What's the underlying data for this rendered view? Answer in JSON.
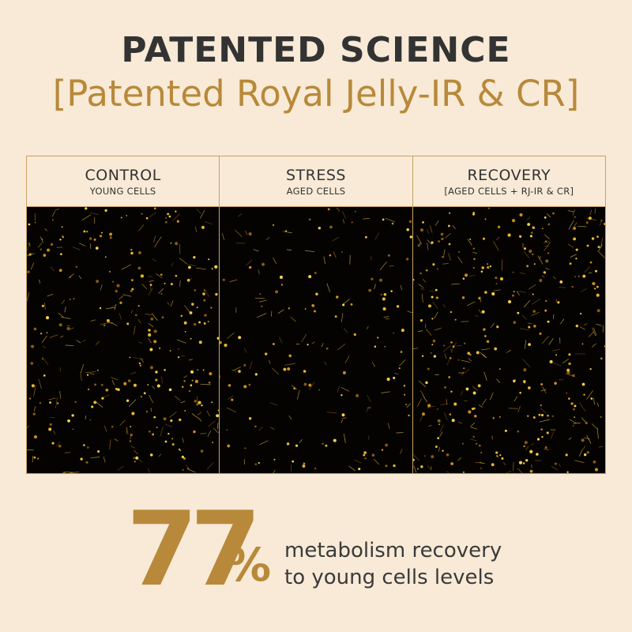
{
  "header": {
    "title": "PATENTED SCIENCE",
    "subtitle": "[Patented Royal Jelly-IR & CR]"
  },
  "panels": [
    {
      "title": "CONTROL",
      "subtitle": "YOUNG CELLS"
    },
    {
      "title": "STRESS",
      "subtitle": "AGED CELLS"
    },
    {
      "title": "RECOVERY",
      "subtitle": "[AGED CELLS + RJ-IR & CR]"
    }
  ],
  "stat": {
    "number": "77",
    "unit": "%",
    "lines": [
      "metabolism recovery",
      "to young cells levels"
    ]
  }
}
